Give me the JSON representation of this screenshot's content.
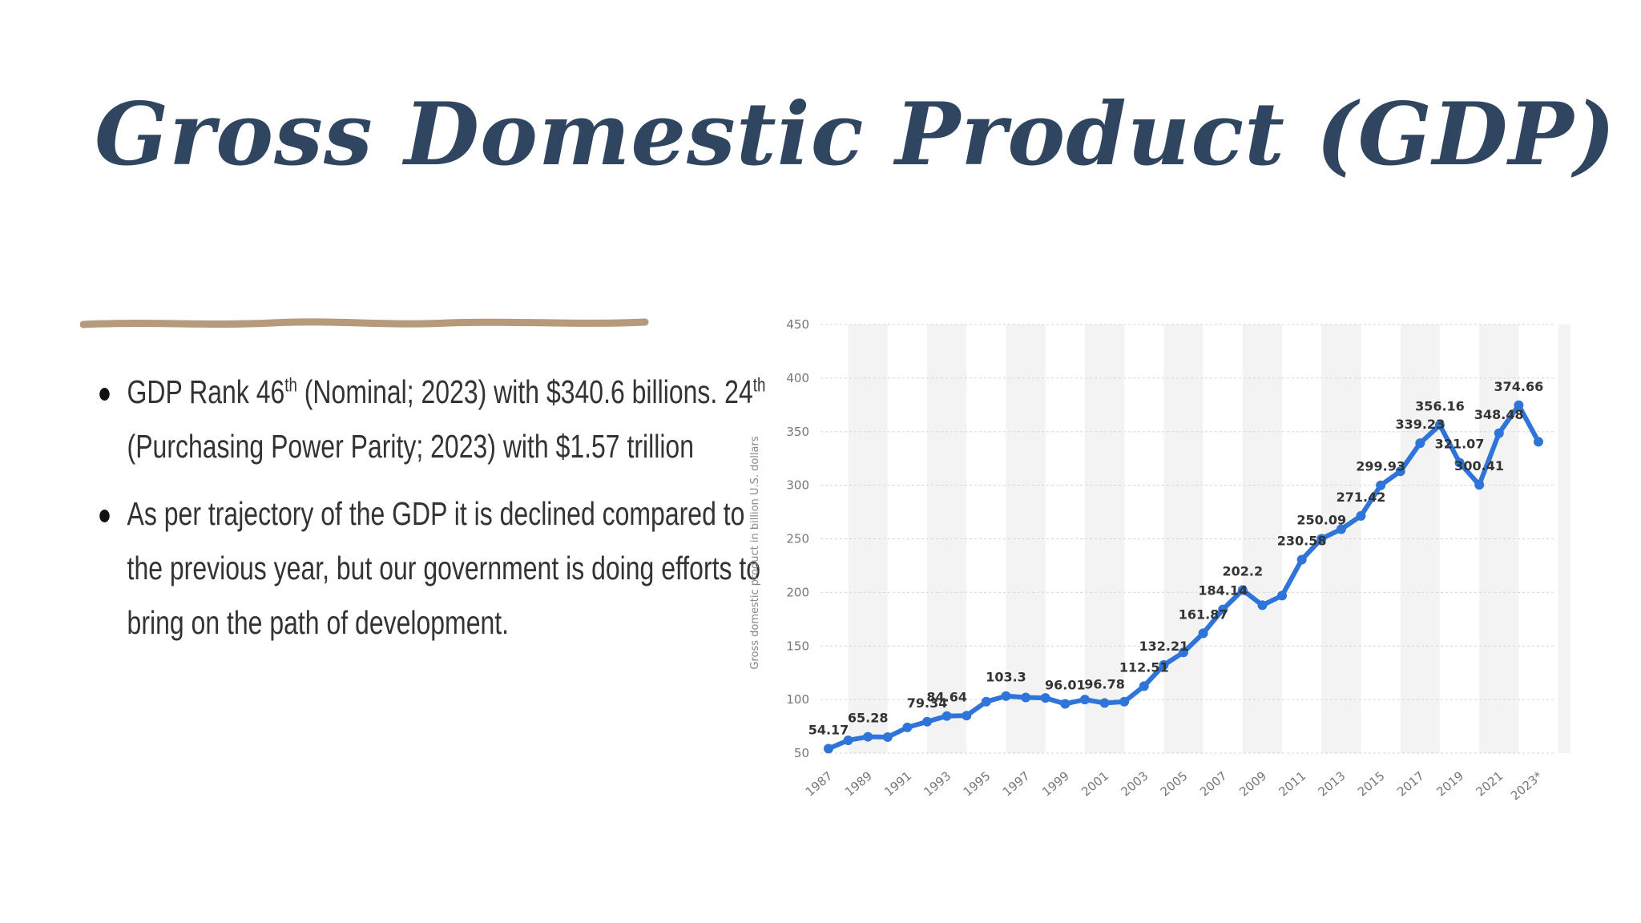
{
  "slide": {
    "title": "Gross Domestic Product (GDP)",
    "bullet1": {
      "a": "GDP Rank 46",
      "a_sup": "th",
      "b": " (Nominal; 2023) with $340.6 billions. 24",
      "b_sup": "th",
      "c": " (Purchasing Power Parity; 2023) with $1.57 trillion"
    },
    "bullet2": "As per trajectory of the GDP it is declined compared to the previous year, but our government is doing efforts to bring on the path of development."
  },
  "colors": {
    "title": "#2f4560",
    "rule": "#b59a7c",
    "line": "#2f74d9",
    "band": "#f3f3f3",
    "grid": "#d6d6d6",
    "axis_text": "#777777",
    "label_text": "#333333"
  },
  "chart_data": {
    "type": "line",
    "title": "",
    "xlabel": "",
    "ylabel": "Gross domestic product in billion U.S. dollars",
    "ylim": [
      50,
      450
    ],
    "yticks": [
      50,
      100,
      150,
      200,
      250,
      300,
      350,
      400,
      450
    ],
    "grid": true,
    "x": [
      1987,
      1988,
      1989,
      1990,
      1991,
      1992,
      1993,
      1994,
      1995,
      1996,
      1997,
      1998,
      1999,
      2000,
      2001,
      2002,
      2003,
      2004,
      2005,
      2006,
      2007,
      2008,
      2009,
      2010,
      2011,
      2012,
      2013,
      2014,
      2015,
      2016,
      2017,
      2018,
      2019,
      2020,
      2021,
      2022,
      2023
    ],
    "xtick_labels": [
      "1987",
      "1989",
      "1991",
      "1993",
      "1995",
      "1997",
      "1999",
      "2001",
      "2003",
      "2005",
      "2007",
      "2009",
      "2011",
      "2013",
      "2015",
      "2017",
      "2019",
      "2021",
      "2023*"
    ],
    "series": [
      {
        "name": "GDP",
        "values": [
          54.17,
          62,
          65.28,
          65,
          74,
          79.34,
          84.64,
          85,
          98,
          103.3,
          102,
          101.5,
          96.01,
          100,
          96.78,
          98,
          112.51,
          132.21,
          144,
          161.87,
          184.14,
          202.2,
          188,
          197,
          230.58,
          250.09,
          259,
          271.42,
          299.93,
          313,
          339.23,
          356.16,
          321.07,
          300.41,
          348.48,
          374.66,
          340.6
        ]
      }
    ],
    "data_labels": [
      {
        "x": 1987,
        "value": "54.17"
      },
      {
        "x": 1989,
        "value": "65.28"
      },
      {
        "x": 1992,
        "value": "79.34"
      },
      {
        "x": 1993,
        "value": "84.64"
      },
      {
        "x": 1996,
        "value": "103.3"
      },
      {
        "x": 1999,
        "value": "96.01"
      },
      {
        "x": 2001,
        "value": "96.78"
      },
      {
        "x": 2003,
        "value": "112.51"
      },
      {
        "x": 2004,
        "value": "132.21"
      },
      {
        "x": 2006,
        "value": "161.87"
      },
      {
        "x": 2007,
        "value": "184.14"
      },
      {
        "x": 2008,
        "value": "202.2"
      },
      {
        "x": 2011,
        "value": "230.58"
      },
      {
        "x": 2012,
        "value": "250.09"
      },
      {
        "x": 2014,
        "value": "271.42"
      },
      {
        "x": 2015,
        "value": "299.93"
      },
      {
        "x": 2017,
        "value": "339.23"
      },
      {
        "x": 2018,
        "value": "356.16"
      },
      {
        "x": 2019,
        "value": "321.07"
      },
      {
        "x": 2020,
        "value": "300.41"
      },
      {
        "x": 2021,
        "value": "348.48"
      },
      {
        "x": 2022,
        "value": "374.66"
      }
    ]
  }
}
